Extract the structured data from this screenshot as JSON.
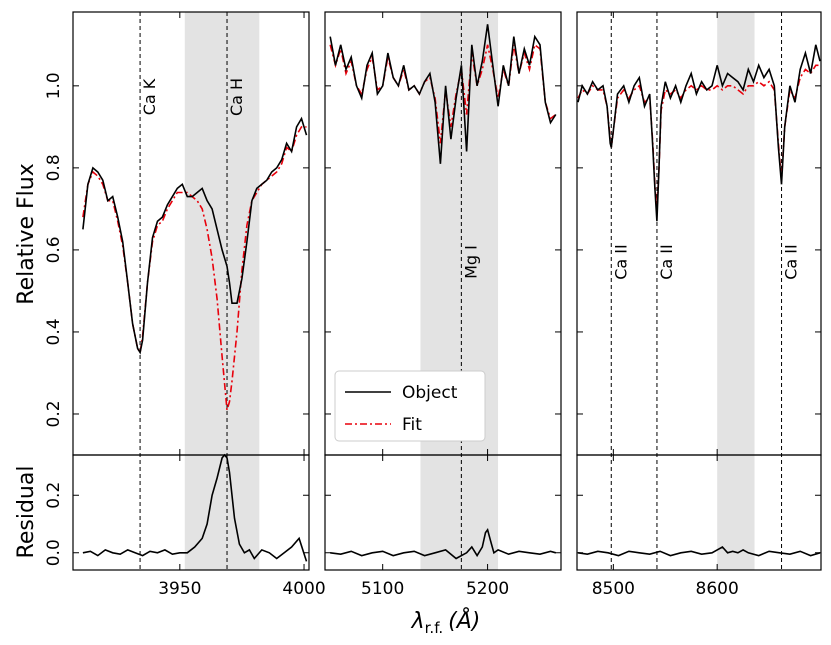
{
  "chart_data": {
    "type": "line",
    "ylabel_top": "Relative Flux",
    "ylabel_bottom": "Residual",
    "xlabel_main": "λ",
    "xlabel_sub": "r.f.",
    "xlabel_unit": "(Å)",
    "legend": {
      "placement": "bottom-center-of-middle-panel",
      "entries": [
        {
          "name": "Object",
          "color": "#000000",
          "style": "solid"
        },
        {
          "name": "Fit",
          "color": "#e8000b",
          "style": "dashdot"
        }
      ]
    },
    "flux_ylim": [
      0.1,
      1.18
    ],
    "flux_yticks": [
      0.2,
      0.4,
      0.6,
      0.8,
      1.0
    ],
    "flux_ytick_labels": [
      "0.2",
      "0.4",
      "0.6",
      "0.8",
      "1.0"
    ],
    "resid_ylim": [
      -0.06,
      0.34
    ],
    "resid_yticks": [
      0.0,
      0.2
    ],
    "resid_ytick_labels": [
      "0.0",
      "0.2"
    ],
    "panels": [
      {
        "xlim": [
          3907,
          4002
        ],
        "xticks": [
          3950,
          4000
        ],
        "xtick_labels": [
          "3950",
          "4000"
        ],
        "shade": [
          3952,
          3982
        ],
        "lines": [
          {
            "x": 3934,
            "label": "Ca K",
            "label_pos": "top"
          },
          {
            "x": 3969,
            "label": "Ca H",
            "label_pos": "top"
          }
        ],
        "object": {
          "x": [
            3911,
            3913,
            3915,
            3917,
            3919,
            3921,
            3923,
            3925,
            3927,
            3929,
            3931,
            3933,
            3934,
            3935,
            3937,
            3939,
            3941,
            3943,
            3945,
            3947,
            3949,
            3951,
            3953,
            3955,
            3957,
            3959,
            3961,
            3963,
            3965,
            3967,
            3969,
            3970,
            3971,
            3972,
            3973,
            3975,
            3977,
            3979,
            3981,
            3983,
            3985,
            3987,
            3989,
            3991,
            3993,
            3995,
            3997,
            3999,
            4001
          ],
          "y": [
            0.65,
            0.76,
            0.8,
            0.79,
            0.77,
            0.72,
            0.73,
            0.68,
            0.62,
            0.52,
            0.42,
            0.36,
            0.35,
            0.38,
            0.52,
            0.63,
            0.67,
            0.68,
            0.71,
            0.73,
            0.75,
            0.76,
            0.73,
            0.73,
            0.74,
            0.75,
            0.72,
            0.7,
            0.65,
            0.6,
            0.56,
            0.52,
            0.47,
            0.47,
            0.47,
            0.53,
            0.62,
            0.72,
            0.75,
            0.76,
            0.77,
            0.79,
            0.8,
            0.82,
            0.86,
            0.84,
            0.9,
            0.92,
            0.88
          ]
        },
        "fit": {
          "x": [
            3911,
            3913,
            3915,
            3917,
            3919,
            3921,
            3923,
            3925,
            3927,
            3929,
            3931,
            3933,
            3934,
            3935,
            3937,
            3939,
            3941,
            3943,
            3945,
            3947,
            3949,
            3951,
            3953,
            3955,
            3957,
            3959,
            3961,
            3963,
            3965,
            3967,
            3969,
            3970,
            3971,
            3973,
            3975,
            3977,
            3979,
            3981,
            3983,
            3985,
            3987,
            3989,
            3991,
            3993,
            3995,
            3997,
            3999,
            4001
          ],
          "y": [
            0.68,
            0.76,
            0.79,
            0.78,
            0.76,
            0.72,
            0.72,
            0.67,
            0.61,
            0.52,
            0.42,
            0.36,
            0.35,
            0.39,
            0.52,
            0.62,
            0.66,
            0.67,
            0.7,
            0.72,
            0.74,
            0.74,
            0.74,
            0.73,
            0.72,
            0.7,
            0.65,
            0.58,
            0.48,
            0.34,
            0.21,
            0.23,
            0.28,
            0.4,
            0.55,
            0.66,
            0.72,
            0.74,
            0.76,
            0.77,
            0.78,
            0.79,
            0.81,
            0.85,
            0.84,
            0.88,
            0.9,
            0.9
          ]
        },
        "residual": {
          "x": [
            3911,
            3914,
            3917,
            3920,
            3923,
            3926,
            3929,
            3932,
            3935,
            3938,
            3941,
            3944,
            3947,
            3950,
            3953,
            3956,
            3959,
            3961,
            3963,
            3965,
            3967,
            3968,
            3969,
            3970,
            3971,
            3972,
            3974,
            3976,
            3978,
            3980,
            3983,
            3986,
            3989,
            3992,
            3995,
            3998,
            4001
          ],
          "y": [
            0.0,
            0.005,
            -0.01,
            0.01,
            0.0,
            -0.005,
            0.01,
            0.0,
            -0.01,
            0.005,
            0.0,
            0.01,
            -0.005,
            0.0,
            0.0,
            0.02,
            0.05,
            0.1,
            0.2,
            0.26,
            0.33,
            0.34,
            0.33,
            0.28,
            0.2,
            0.12,
            0.03,
            0.0,
            0.01,
            -0.02,
            0.01,
            0.0,
            -0.02,
            0.0,
            0.02,
            0.05,
            -0.03
          ]
        }
      },
      {
        "xlim": [
          5045,
          5270
        ],
        "xticks": [
          5100,
          5200
        ],
        "xtick_labels": [
          "5100",
          "5200"
        ],
        "shade": [
          5136,
          5210
        ],
        "lines": [
          {
            "x": 5175,
            "label": "Mg I",
            "label_pos": "bottom"
          }
        ],
        "object": {
          "x": [
            5050,
            5055,
            5060,
            5065,
            5070,
            5075,
            5080,
            5085,
            5090,
            5095,
            5100,
            5105,
            5110,
            5115,
            5120,
            5125,
            5130,
            5135,
            5140,
            5145,
            5150,
            5155,
            5160,
            5165,
            5170,
            5175,
            5180,
            5185,
            5190,
            5195,
            5200,
            5205,
            5210,
            5215,
            5220,
            5225,
            5230,
            5235,
            5240,
            5245,
            5250,
            5255,
            5260,
            5265
          ],
          "y": [
            1.12,
            1.05,
            1.1,
            1.04,
            1.07,
            1.0,
            0.97,
            1.05,
            1.08,
            0.98,
            1.0,
            1.08,
            1.02,
            1.0,
            1.05,
            0.99,
            1.0,
            0.98,
            1.01,
            1.03,
            0.96,
            0.81,
            1.0,
            0.87,
            0.97,
            1.05,
            0.84,
            1.1,
            1.0,
            1.06,
            1.15,
            1.05,
            0.95,
            1.05,
            1.0,
            1.12,
            1.03,
            1.09,
            1.05,
            1.12,
            1.1,
            0.96,
            0.91,
            0.93
          ]
        },
        "fit": {
          "x": [
            5050,
            5055,
            5060,
            5065,
            5070,
            5075,
            5080,
            5085,
            5090,
            5095,
            5100,
            5105,
            5110,
            5115,
            5120,
            5125,
            5130,
            5135,
            5140,
            5145,
            5150,
            5155,
            5160,
            5165,
            5170,
            5175,
            5180,
            5185,
            5190,
            5195,
            5200,
            5205,
            5210,
            5215,
            5220,
            5225,
            5230,
            5235,
            5240,
            5245,
            5250,
            5255,
            5260,
            5265
          ],
          "y": [
            1.1,
            1.05,
            1.09,
            1.03,
            1.06,
            1.0,
            0.98,
            1.04,
            1.07,
            0.99,
            1.0,
            1.07,
            1.02,
            1.0,
            1.04,
            0.99,
            1.0,
            0.98,
            1.01,
            1.02,
            0.97,
            0.86,
            0.99,
            0.9,
            0.98,
            1.04,
            0.93,
            1.08,
            1.0,
            1.04,
            1.1,
            1.04,
            0.97,
            1.04,
            1.0,
            1.1,
            1.03,
            1.08,
            1.04,
            1.1,
            1.09,
            0.96,
            0.92,
            0.93
          ]
        },
        "residual": {
          "x": [
            5050,
            5060,
            5070,
            5080,
            5090,
            5100,
            5110,
            5120,
            5130,
            5140,
            5150,
            5160,
            5170,
            5180,
            5185,
            5190,
            5195,
            5198,
            5200,
            5203,
            5206,
            5210,
            5220,
            5230,
            5240,
            5250,
            5260,
            5265
          ],
          "y": [
            0.0,
            -0.005,
            0.005,
            -0.01,
            0.0,
            0.005,
            -0.01,
            0.0,
            0.005,
            -0.01,
            0.0,
            0.01,
            -0.02,
            0.0,
            0.02,
            -0.01,
            0.02,
            0.07,
            0.08,
            0.04,
            0.0,
            0.01,
            -0.005,
            0.005,
            0.0,
            -0.005,
            0.005,
            0.0
          ]
        }
      },
      {
        "xlim": [
          8465,
          8700
        ],
        "xticks": [
          8500,
          8600
        ],
        "xtick_labels": [
          "8500",
          "8600"
        ],
        "shade": [
          8600,
          8636
        ],
        "lines": [
          {
            "x": 8498,
            "label": "Ca II",
            "label_pos": "bottom"
          },
          {
            "x": 8542,
            "label": "Ca II",
            "label_pos": "bottom"
          },
          {
            "x": 8662,
            "label": "Ca II",
            "label_pos": "bottom"
          }
        ],
        "object": {
          "x": [
            8466,
            8470,
            8475,
            8480,
            8485,
            8490,
            8494,
            8497,
            8498,
            8500,
            8504,
            8510,
            8515,
            8520,
            8525,
            8530,
            8535,
            8538,
            8540,
            8542,
            8544,
            8546,
            8550,
            8555,
            8560,
            8565,
            8570,
            8575,
            8580,
            8585,
            8590,
            8595,
            8600,
            8605,
            8610,
            8615,
            8620,
            8625,
            8630,
            8635,
            8640,
            8645,
            8650,
            8655,
            8659,
            8662,
            8665,
            8670,
            8675,
            8680,
            8685,
            8690,
            8695,
            8699
          ],
          "y": [
            0.96,
            1.0,
            0.98,
            1.01,
            0.99,
            1.0,
            0.95,
            0.86,
            0.85,
            0.89,
            0.98,
            1.0,
            0.96,
            1.0,
            1.02,
            0.95,
            0.98,
            0.85,
            0.75,
            0.67,
            0.8,
            0.95,
            1.01,
            0.97,
            1.0,
            0.96,
            1.0,
            1.03,
            0.98,
            1.01,
            0.99,
            1.0,
            1.05,
            1.0,
            1.03,
            1.02,
            1.01,
            0.99,
            1.04,
            1.01,
            1.05,
            1.02,
            1.04,
            1.0,
            0.85,
            0.76,
            0.9,
            1.0,
            0.96,
            1.04,
            1.08,
            1.03,
            1.1,
            1.06
          ]
        },
        "fit": {
          "x": [
            8466,
            8470,
            8475,
            8480,
            8485,
            8490,
            8494,
            8497,
            8498,
            8500,
            8504,
            8510,
            8515,
            8520,
            8525,
            8530,
            8535,
            8538,
            8540,
            8542,
            8544,
            8546,
            8550,
            8555,
            8560,
            8565,
            8570,
            8575,
            8580,
            8585,
            8590,
            8595,
            8600,
            8605,
            8610,
            8615,
            8620,
            8625,
            8630,
            8635,
            8640,
            8645,
            8650,
            8655,
            8659,
            8662,
            8665,
            8670,
            8675,
            8680,
            8685,
            8690,
            8695,
            8699
          ],
          "y": [
            0.97,
            0.99,
            0.98,
            1.0,
            0.99,
            0.99,
            0.95,
            0.87,
            0.85,
            0.89,
            0.97,
            0.99,
            0.97,
            0.99,
            1.0,
            0.96,
            0.97,
            0.86,
            0.76,
            0.69,
            0.8,
            0.94,
            0.99,
            0.98,
            0.99,
            0.97,
            0.99,
            1.0,
            0.99,
            1.0,
            0.99,
            0.99,
            1.0,
            0.99,
            1.0,
            1.0,
            0.99,
            0.98,
            1.0,
            1.0,
            1.01,
            1.0,
            1.01,
            0.99,
            0.86,
            0.77,
            0.9,
            0.99,
            0.97,
            1.02,
            1.04,
            1.03,
            1.05,
            1.05
          ]
        },
        "residual": {
          "x": [
            8466,
            8475,
            8485,
            8495,
            8505,
            8515,
            8525,
            8535,
            8545,
            8555,
            8565,
            8575,
            8585,
            8595,
            8600,
            8605,
            8610,
            8615,
            8620,
            8625,
            8630,
            8640,
            8650,
            8660,
            8670,
            8680,
            8690,
            8699
          ],
          "y": [
            0.0,
            -0.005,
            0.005,
            0.0,
            -0.01,
            0.005,
            0.0,
            -0.005,
            0.005,
            -0.01,
            0.0,
            0.005,
            -0.005,
            0.0,
            0.01,
            0.02,
            0.0,
            0.005,
            0.0,
            0.01,
            0.0,
            -0.01,
            0.005,
            0.0,
            -0.005,
            0.005,
            -0.01,
            0.0
          ]
        }
      }
    ]
  }
}
